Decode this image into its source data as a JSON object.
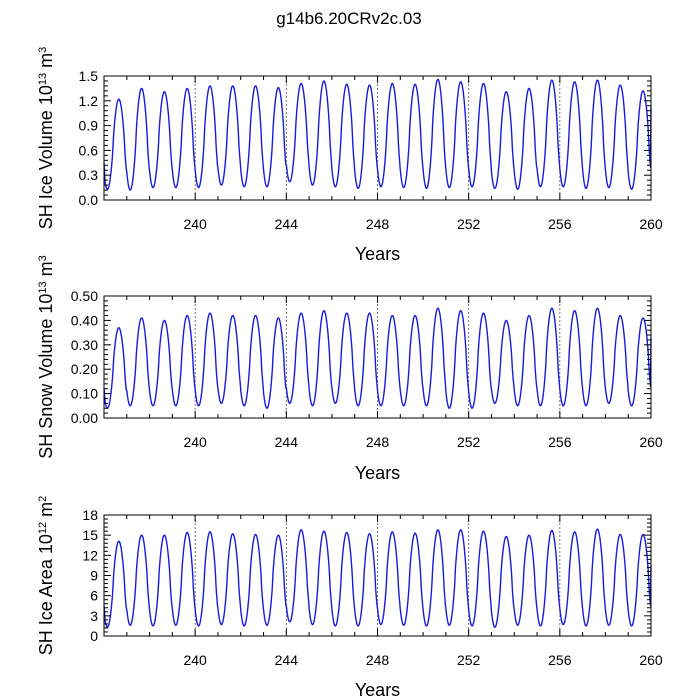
{
  "figure": {
    "title": "g14b6.20CRv2c.03"
  },
  "colors": {
    "series": "#1a1adc",
    "gridline": "#666666"
  },
  "chart_data": [
    {
      "type": "line",
      "xlabel": "Years",
      "ylabel": {
        "base": "SH Ice Volume 10",
        "exp": "13",
        "unit": " m",
        "unit_exp": "3"
      },
      "xlim": [
        236.0,
        260.0
      ],
      "ylim": [
        0.0,
        1.5
      ],
      "xticks": [
        240,
        244,
        248,
        252,
        256,
        260
      ],
      "xtick_labels": [
        "240",
        "244",
        "248",
        "252",
        "256",
        "260"
      ],
      "yticks": [
        0.0,
        0.3,
        0.6,
        0.9,
        1.2,
        1.5
      ],
      "ytick_labels": [
        "0.0",
        "0.3",
        "0.6",
        "0.9",
        "1.2",
        "1.5"
      ],
      "dashed_x": [
        240,
        244,
        248,
        252,
        256
      ],
      "series": [
        {
          "name": "SH Ice Volume",
          "start_year": 236.0,
          "end_year": 260.0,
          "annual_max": [
            1.22,
            1.35,
            1.31,
            1.35,
            1.38,
            1.38,
            1.38,
            1.36,
            1.41,
            1.44,
            1.4,
            1.39,
            1.41,
            1.4,
            1.46,
            1.43,
            1.41,
            1.31,
            1.35,
            1.45,
            1.43,
            1.45,
            1.39,
            1.32
          ],
          "annual_min": [
            0.13,
            0.12,
            0.15,
            0.15,
            0.15,
            0.18,
            0.16,
            0.16,
            0.22,
            0.18,
            0.16,
            0.14,
            0.16,
            0.15,
            0.14,
            0.15,
            0.16,
            0.14,
            0.13,
            0.16,
            0.16,
            0.14,
            0.15,
            0.13
          ],
          "start_value": 0.45,
          "end_value": 1.12
        }
      ]
    },
    {
      "type": "line",
      "xlabel": "Years",
      "ylabel": {
        "base": "SH Snow Volume 10",
        "exp": "13",
        "unit": " m",
        "unit_exp": "3"
      },
      "xlim": [
        236.0,
        260.0
      ],
      "ylim": [
        0.0,
        0.5
      ],
      "xticks": [
        240,
        244,
        248,
        252,
        256,
        260
      ],
      "xtick_labels": [
        "240",
        "244",
        "248",
        "252",
        "256",
        "260"
      ],
      "yticks": [
        0.0,
        0.1,
        0.2,
        0.3,
        0.4,
        0.5
      ],
      "ytick_labels": [
        "0.00",
        "0.10",
        "0.20",
        "0.30",
        "0.40",
        "0.50"
      ],
      "dashed_x": [
        240,
        244,
        248,
        252,
        256
      ],
      "series": [
        {
          "name": "SH Snow Volume",
          "start_year": 236.0,
          "end_year": 260.0,
          "annual_max": [
            0.37,
            0.41,
            0.4,
            0.42,
            0.43,
            0.42,
            0.42,
            0.41,
            0.43,
            0.44,
            0.43,
            0.43,
            0.42,
            0.42,
            0.45,
            0.44,
            0.43,
            0.4,
            0.42,
            0.45,
            0.44,
            0.45,
            0.42,
            0.41
          ],
          "annual_min": [
            0.04,
            0.05,
            0.05,
            0.05,
            0.05,
            0.06,
            0.05,
            0.04,
            0.06,
            0.05,
            0.06,
            0.05,
            0.05,
            0.05,
            0.05,
            0.04,
            0.04,
            0.06,
            0.05,
            0.05,
            0.05,
            0.05,
            0.06,
            0.05
          ],
          "start_value": 0.12,
          "end_value": 0.33
        }
      ]
    },
    {
      "type": "line",
      "xlabel": "Years",
      "ylabel": {
        "base": "SH Ice Area 10",
        "exp": "12",
        "unit": " m",
        "unit_exp": "2"
      },
      "xlim": [
        236.0,
        260.0
      ],
      "ylim": [
        0,
        18
      ],
      "xticks": [
        240,
        244,
        248,
        252,
        256,
        260
      ],
      "xtick_labels": [
        "240",
        "244",
        "248",
        "252",
        "256",
        "260"
      ],
      "yticks": [
        0,
        3,
        6,
        9,
        12,
        15,
        18
      ],
      "ytick_labels": [
        "0",
        "3",
        "6",
        "9",
        "12",
        "15",
        "18"
      ],
      "dashed_x": [
        240,
        244,
        248,
        252,
        256
      ],
      "series": [
        {
          "name": "SH Ice Area",
          "start_year": 236.0,
          "end_year": 260.0,
          "annual_max": [
            14.1,
            15.0,
            15.0,
            15.4,
            15.5,
            15.2,
            15.1,
            15.0,
            15.8,
            15.6,
            15.4,
            15.2,
            15.5,
            15.3,
            15.8,
            15.8,
            15.6,
            14.8,
            15.0,
            15.7,
            15.5,
            15.9,
            15.1,
            15.1
          ],
          "annual_min": [
            1.3,
            1.6,
            1.5,
            1.6,
            1.5,
            1.7,
            1.5,
            1.6,
            2.1,
            1.7,
            1.5,
            1.5,
            1.7,
            1.6,
            1.5,
            1.6,
            1.5,
            1.3,
            1.6,
            1.5,
            1.7,
            1.5,
            1.6,
            1.5
          ],
          "start_value": 4.5,
          "end_value": 10.5
        }
      ]
    }
  ]
}
